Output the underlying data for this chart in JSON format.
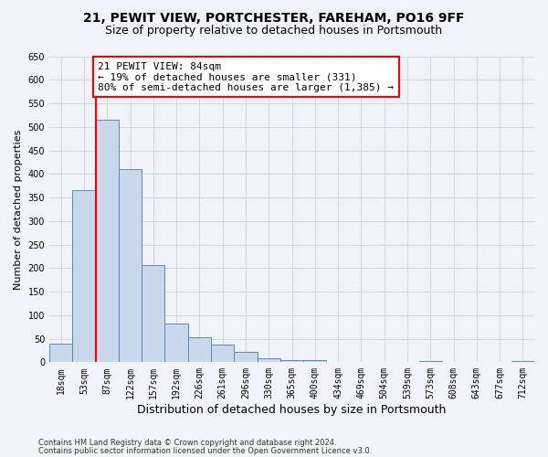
{
  "title1": "21, PEWIT VIEW, PORTCHESTER, FAREHAM, PO16 9FF",
  "title2": "Size of property relative to detached houses in Portsmouth",
  "xlabel": "Distribution of detached houses by size in Portsmouth",
  "ylabel": "Number of detached properties",
  "categories": [
    "18sqm",
    "53sqm",
    "87sqm",
    "122sqm",
    "157sqm",
    "192sqm",
    "226sqm",
    "261sqm",
    "296sqm",
    "330sqm",
    "365sqm",
    "400sqm",
    "434sqm",
    "469sqm",
    "504sqm",
    "539sqm",
    "573sqm",
    "608sqm",
    "643sqm",
    "677sqm",
    "712sqm"
  ],
  "values": [
    40,
    365,
    515,
    410,
    207,
    82,
    53,
    37,
    22,
    9,
    5,
    5,
    1,
    0,
    0,
    0,
    2,
    0,
    0,
    1,
    2
  ],
  "bar_color": "#c9d9eb",
  "bar_edge_color": "#5a8ab5",
  "grid_color": "#d0d8e8",
  "property_line_bar_index": 2,
  "annotation_text_line1": "21 PEWIT VIEW: 84sqm",
  "annotation_text_line2": "← 19% of detached houses are smaller (331)",
  "annotation_text_line3": "80% of semi-detached houses are larger (1,385) →",
  "annotation_box_color": "white",
  "annotation_box_edge_color": "red",
  "vline_color": "red",
  "footnote1": "Contains HM Land Registry data © Crown copyright and database right 2024.",
  "footnote2": "Contains public sector information licensed under the Open Government Licence v3.0.",
  "ylim": [
    0,
    650
  ],
  "yticks": [
    0,
    50,
    100,
    150,
    200,
    250,
    300,
    350,
    400,
    450,
    500,
    550,
    600,
    650
  ],
  "bg_color": "#f0f4fa",
  "title1_fontsize": 10,
  "title2_fontsize": 9,
  "bar_font_size": 7,
  "ylabel_fontsize": 8,
  "xlabel_fontsize": 9,
  "tick_fontsize": 7,
  "annotation_fontsize": 8,
  "footnote_fontsize": 6
}
